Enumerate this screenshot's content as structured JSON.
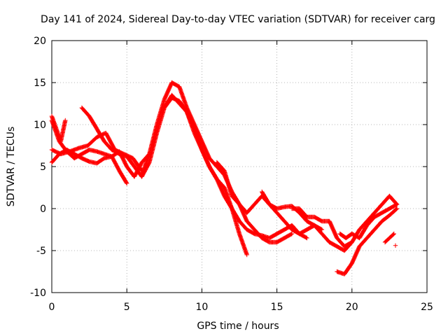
{
  "chart_data": {
    "type": "scatter",
    "title": "Day 141 of 2024, Sidereal Day-to-day VTEC variation (SDTVAR) for receiver carg",
    "xlabel": "GPS time / hours",
    "ylabel": "SDTVAR / TECUs",
    "xlim": [
      0,
      25
    ],
    "ylim": [
      -10,
      20
    ],
    "x_ticks": [
      0,
      5,
      10,
      15,
      20,
      25
    ],
    "y_ticks": [
      -10,
      -5,
      0,
      5,
      10,
      15,
      20
    ],
    "x_tick_labels": [
      "0",
      "5",
      "10",
      "15",
      "20",
      "25"
    ],
    "y_tick_labels": [
      "-10",
      "-5",
      "0",
      "5",
      "10",
      "15",
      "20"
    ],
    "grid": true,
    "marker": "+",
    "color": "#ff0000",
    "series": [
      {
        "name": "trace-1",
        "x": [
          0.0,
          0.3,
          0.6,
          0.9
        ],
        "y": [
          11.0,
          9.5,
          8.0,
          10.5
        ]
      },
      {
        "name": "trace-2",
        "x": [
          0.0,
          0.5,
          1.0,
          1.5,
          2.0,
          2.5,
          3.0,
          3.5,
          4.0,
          4.5,
          5.0
        ],
        "y": [
          10.5,
          8.0,
          6.8,
          6.0,
          6.5,
          7.0,
          6.8,
          6.5,
          6.2,
          4.5,
          3.0
        ]
      },
      {
        "name": "trace-3",
        "x": [
          0.0,
          0.5,
          1.0,
          1.5,
          2.0,
          2.5,
          3.0,
          3.5,
          4.0,
          4.5,
          5.0,
          5.5,
          6.0,
          6.5
        ],
        "y": [
          5.5,
          6.5,
          7.0,
          6.5,
          6.0,
          5.6,
          5.4,
          6.0,
          6.2,
          6.8,
          5.0,
          3.8,
          5.5,
          6.5
        ]
      },
      {
        "name": "trace-4",
        "x": [
          0.0,
          0.6,
          1.2,
          1.8,
          2.4,
          3.0,
          3.6,
          4.2,
          4.8,
          5.4,
          6.0
        ],
        "y": [
          7.0,
          6.5,
          6.8,
          7.2,
          7.5,
          8.5,
          9.0,
          7.0,
          6.5,
          6.0,
          4.5
        ]
      },
      {
        "name": "trace-5",
        "x": [
          2.0,
          2.5,
          3.0,
          3.5,
          4.0,
          4.5,
          5.0,
          5.5,
          6.0,
          6.5,
          7.0,
          7.5,
          8.0,
          8.5,
          9.0,
          9.5,
          10.0,
          10.5,
          11.0,
          11.5,
          12.0,
          12.5,
          13.0
        ],
        "y": [
          12.0,
          11.0,
          9.5,
          8.0,
          7.0,
          6.5,
          6.2,
          5.0,
          3.8,
          5.5,
          9.0,
          12.0,
          13.5,
          12.5,
          11.5,
          9.5,
          7.0,
          5.0,
          3.5,
          2.5,
          0.0,
          -3.0,
          -5.5
        ]
      },
      {
        "name": "trace-6",
        "x": [
          6.0,
          6.5,
          7.0,
          7.5,
          8.0,
          8.5,
          9.0,
          9.5,
          10.0,
          10.5,
          11.0,
          11.5,
          12.0,
          12.5,
          13.0,
          13.5,
          14.0,
          14.5,
          15.0,
          15.5,
          16.0
        ],
        "y": [
          4.0,
          6.5,
          10.0,
          13.0,
          15.0,
          14.5,
          12.0,
          10.0,
          8.0,
          6.0,
          5.0,
          4.0,
          2.0,
          0.5,
          -1.5,
          -2.5,
          -3.5,
          -4.0,
          -4.0,
          -3.5,
          -3.0
        ]
      },
      {
        "name": "trace-7",
        "x": [
          7.5,
          8.0,
          8.5,
          9.0,
          9.5,
          10.0,
          10.5,
          11.0,
          11.5,
          12.0,
          12.5,
          13.0,
          13.5,
          14.0,
          14.5,
          15.0,
          15.5,
          16.0,
          16.5,
          17.0
        ],
        "y": [
          12.0,
          13.2,
          12.8,
          11.5,
          9.0,
          7.0,
          5.0,
          3.5,
          1.5,
          0.0,
          -1.5,
          -2.5,
          -3.0,
          -3.2,
          -3.5,
          -3.0,
          -2.5,
          -2.0,
          -3.0,
          -3.5
        ]
      },
      {
        "name": "trace-8",
        "x": [
          11.0,
          11.5,
          12.0,
          12.5,
          13.0,
          13.5,
          14.0,
          14.5,
          15.0,
          15.5,
          16.0,
          16.5,
          17.0,
          17.5,
          18.0
        ],
        "y": [
          5.5,
          4.5,
          1.5,
          0.5,
          -0.5,
          0.5,
          1.5,
          0.5,
          0.0,
          0.2,
          0.3,
          -0.5,
          -1.5,
          -2.0,
          -2.5
        ]
      },
      {
        "name": "trace-9",
        "x": [
          14.0,
          14.5,
          15.0,
          15.5,
          16.0,
          16.5,
          17.0,
          17.5,
          18.0,
          18.5,
          19.0,
          19.5,
          20.0
        ],
        "y": [
          2.0,
          0.5,
          -0.5,
          -1.5,
          -2.5,
          -3.0,
          -2.5,
          -2.0,
          -3.0,
          -4.0,
          -4.5,
          -5.0,
          -4.0
        ]
      },
      {
        "name": "trace-10",
        "x": [
          16.0,
          16.5,
          17.0,
          17.5,
          18.0,
          18.5,
          19.0,
          19.5,
          20.0,
          20.5,
          21.0,
          21.5,
          22.0,
          22.5,
          23.0
        ],
        "y": [
          0.0,
          0.0,
          -1.0,
          -1.0,
          -1.5,
          -1.5,
          -3.5,
          -4.5,
          -4.0,
          -2.5,
          -1.5,
          -0.5,
          0.5,
          1.5,
          0.5
        ]
      },
      {
        "name": "trace-11",
        "x": [
          19.2,
          19.6,
          20.0,
          20.5,
          21.0,
          21.5,
          22.0,
          22.5,
          23.0
        ],
        "y": [
          -3.0,
          -3.5,
          -3.0,
          -3.5,
          -2.0,
          -1.0,
          -0.5,
          0.0,
          0.5
        ]
      },
      {
        "name": "trace-12",
        "x": [
          19.0,
          19.5,
          20.0,
          20.5,
          21.0,
          21.5,
          22.0,
          22.5,
          23.0
        ],
        "y": [
          -7.5,
          -7.8,
          -6.5,
          -4.5,
          -3.5,
          -2.5,
          -1.5,
          -0.8,
          0.0
        ]
      },
      {
        "name": "trace-13",
        "x": [
          22.2,
          22.5,
          22.8
        ],
        "y": [
          -4.0,
          -3.5,
          -3.0
        ]
      },
      {
        "name": "trace-14",
        "x": [
          22.9
        ],
        "y": [
          -4.4
        ]
      }
    ]
  }
}
